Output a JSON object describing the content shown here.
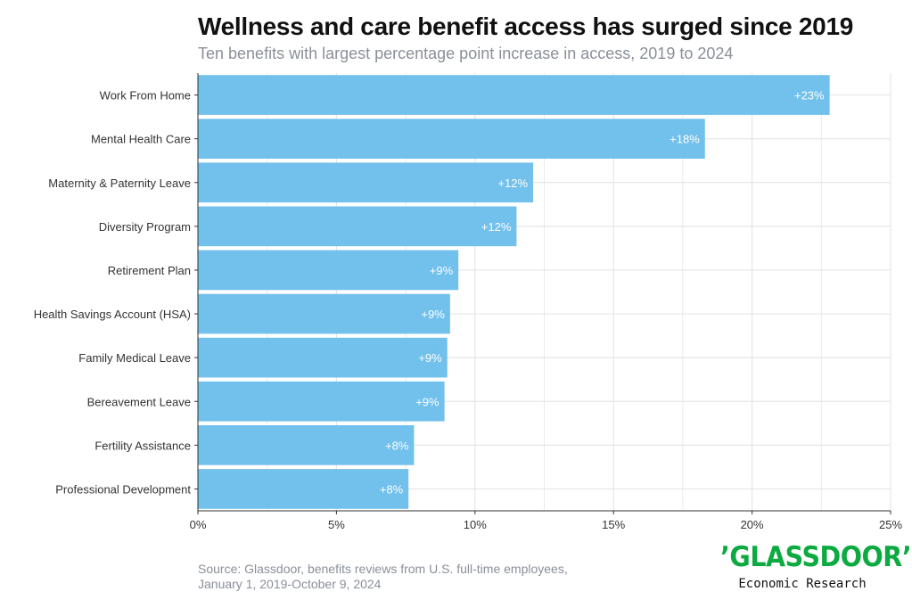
{
  "header": {
    "title": "Wellness and care benefit access has surged since 2019",
    "subtitle": "Ten benefits with largest percentage point increase in access, 2019 to 2024"
  },
  "footer": {
    "source_line1": "Source: Glassdoor, benefits reviews from U.S. full-time employees,",
    "source_line2": "January 1, 2019-October 9, 2024"
  },
  "logo": {
    "wordmark": "’GLASSDOOR’",
    "tagline": "Economic Research"
  },
  "colors": {
    "bar": "#72c0ec",
    "grid": "#e6e6e6",
    "logo_green": "#0caa41"
  },
  "chart_data": {
    "type": "bar",
    "orientation": "horizontal",
    "title": "Wellness and care benefit access has surged since 2019",
    "subtitle": "Ten benefits with largest percentage point increase in access, 2019 to 2024",
    "categories": [
      "Work From Home",
      "Mental Health Care",
      "Maternity & Paternity Leave",
      "Diversity Program",
      "Retirement Plan",
      "Health Savings Account (HSA)",
      "Family Medical Leave",
      "Bereavement Leave",
      "Fertility Assistance",
      "Professional Development"
    ],
    "values": [
      22.8,
      18.3,
      12.1,
      11.5,
      9.4,
      9.1,
      9.0,
      8.9,
      7.8,
      7.6
    ],
    "data_labels": [
      "+23%",
      "+18%",
      "+12%",
      "+12%",
      "+9%",
      "+9%",
      "+9%",
      "+9%",
      "+8%",
      "+8%"
    ],
    "xlim": [
      0,
      25
    ],
    "xticks": [
      0,
      5,
      10,
      15,
      20,
      25
    ],
    "xtick_labels": [
      "0%",
      "5%",
      "10%",
      "15%",
      "20%",
      "25%"
    ],
    "xlabel": "",
    "ylabel": "",
    "grid": true,
    "legend": "none"
  }
}
